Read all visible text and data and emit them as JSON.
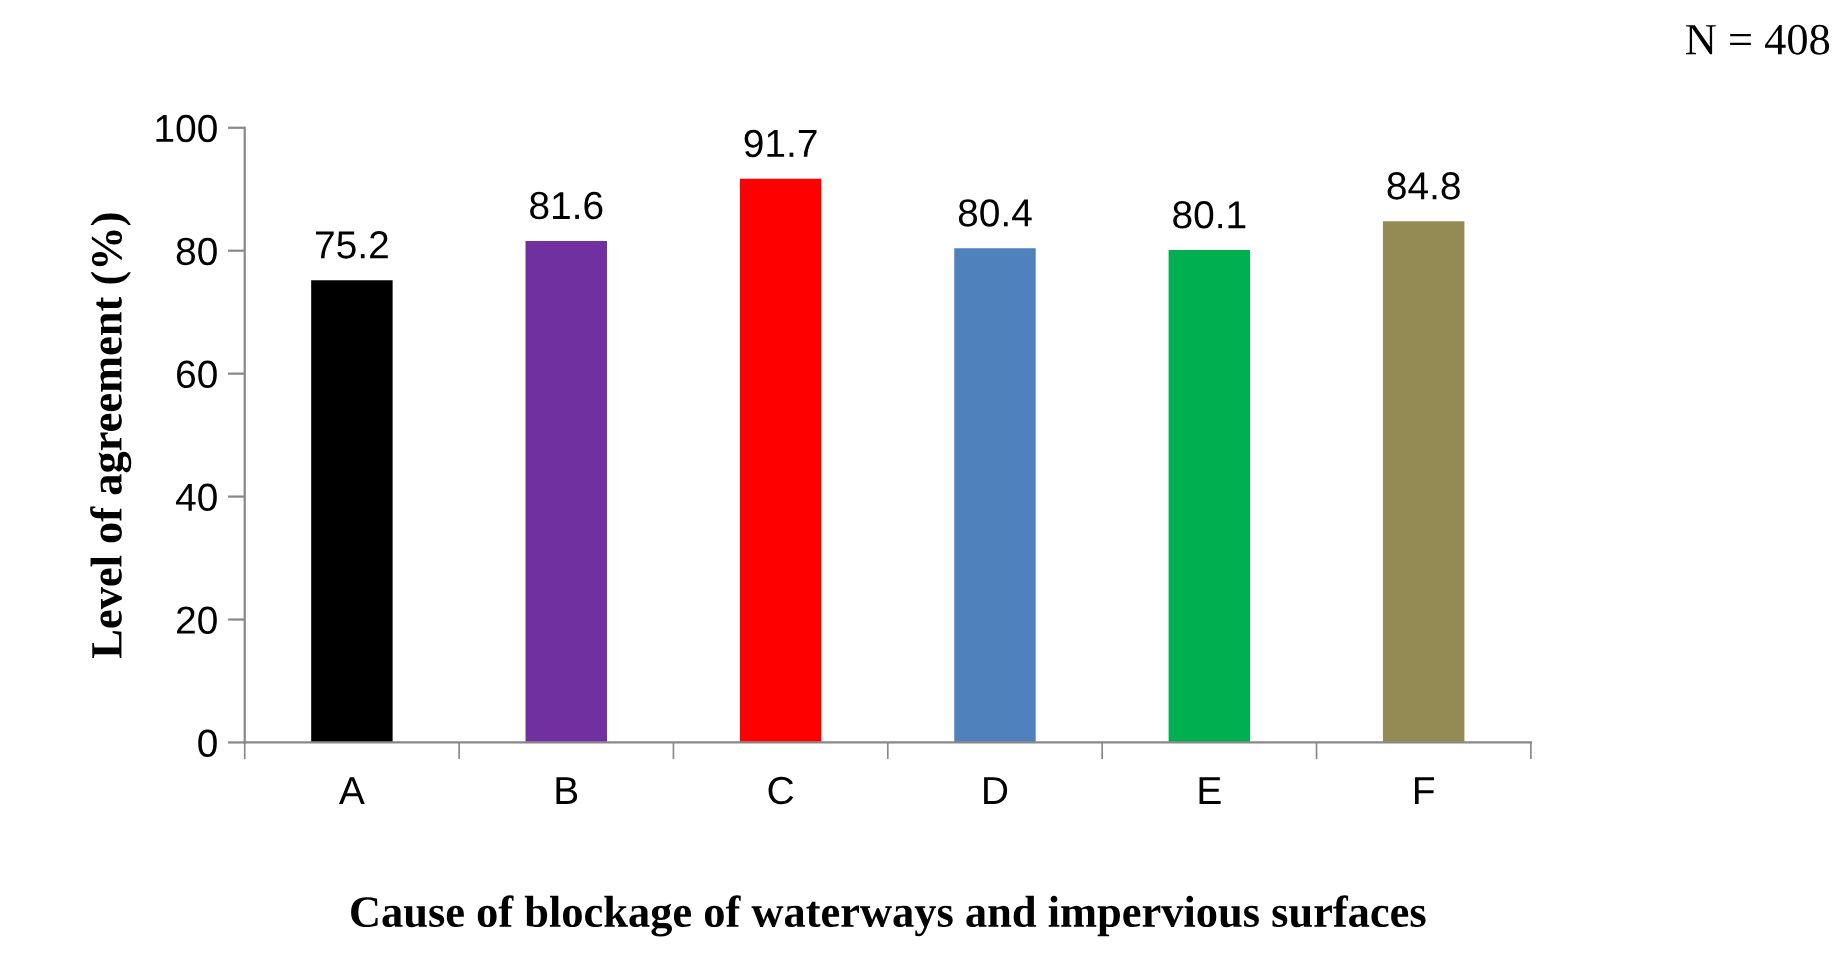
{
  "chart_data": {
    "type": "bar",
    "xlabel": "Cause of blockage of waterways and impervious surfaces",
    "ylabel": "Level of agreement (%)",
    "annotations": [
      "N = 408"
    ],
    "categories": [
      "A",
      "B",
      "C",
      "D",
      "E",
      "F"
    ],
    "values": [
      75.2,
      81.6,
      91.7,
      80.4,
      80.1,
      84.8
    ],
    "colors": [
      "#000000",
      "#7030a0",
      "#ff0000",
      "#4f81bd",
      "#00b050",
      "#948a54"
    ],
    "ylim": [
      0,
      100
    ],
    "yticks": [
      0,
      20,
      40,
      60,
      80,
      100
    ],
    "data_labels": true,
    "grid": false,
    "legend": false
  }
}
